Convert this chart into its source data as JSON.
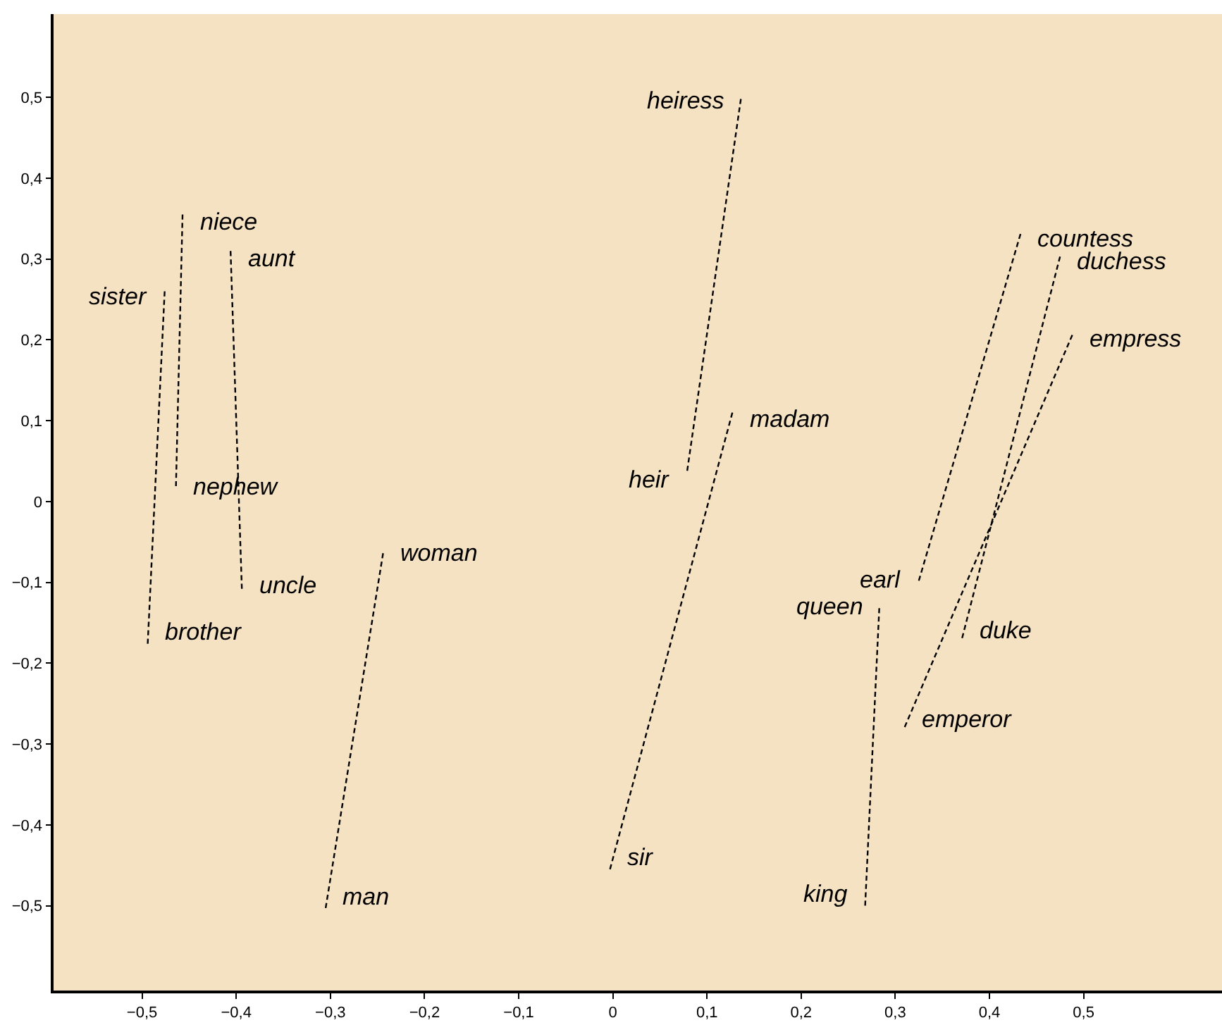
{
  "chart_data": {
    "type": "line",
    "line_style": "dashed",
    "marker": "none",
    "grid": false,
    "xlim": [
      -0.594,
      0.647
    ],
    "ylim": [
      -0.605,
      0.603
    ],
    "xticks": [
      {
        "value": -0.5,
        "label": "−0,5"
      },
      {
        "value": -0.4,
        "label": "−0,4"
      },
      {
        "value": -0.3,
        "label": "−0,3"
      },
      {
        "value": -0.2,
        "label": "−0,2"
      },
      {
        "value": -0.1,
        "label": "−0,1"
      },
      0,
      {
        "value": 0.1,
        "label": "0,1"
      },
      {
        "value": 0.2,
        "label": "0,2"
      },
      {
        "value": 0.3,
        "label": "0,3"
      },
      {
        "value": 0.4,
        "label": "0,4"
      },
      {
        "value": 0.5,
        "label": "0,5"
      }
    ],
    "yticks": [
      {
        "value": -0.5,
        "label": "−0,5"
      },
      {
        "value": -0.4,
        "label": "−0,4"
      },
      {
        "value": -0.3,
        "label": "−0,3"
      },
      {
        "value": -0.2,
        "label": "−0,2"
      },
      {
        "value": -0.1,
        "label": "−0,1"
      },
      0,
      {
        "value": 0.1,
        "label": "0,1"
      },
      {
        "value": 0.2,
        "label": "0,2"
      },
      {
        "value": 0.3,
        "label": "0,3"
      },
      {
        "value": 0.4,
        "label": "0,4"
      },
      {
        "value": 0.5,
        "label": "0,5"
      }
    ],
    "series": [
      {
        "color": "#000000",
        "x": [
          -0.476,
          -0.494
        ],
        "values": [
          0.26,
          -0.176
        ]
      },
      {
        "color": "#000000",
        "x": [
          -0.457,
          -0.464
        ],
        "values": [
          0.355,
          0.019
        ]
      },
      {
        "color": "#000000",
        "x": [
          -0.406,
          -0.394
        ],
        "values": [
          0.31,
          -0.108
        ]
      },
      {
        "color": "#000000",
        "x": [
          -0.244,
          -0.305
        ],
        "values": [
          -0.064,
          -0.503
        ]
      },
      {
        "color": "#000000",
        "x": [
          0.136,
          0.079
        ],
        "values": [
          0.498,
          0.038
        ]
      },
      {
        "color": "#000000",
        "x": [
          0.127,
          -0.003
        ],
        "values": [
          0.11,
          -0.455
        ]
      },
      {
        "color": "#000000",
        "x": [
          0.433,
          0.325
        ],
        "values": [
          0.331,
          -0.098
        ]
      },
      {
        "color": "#000000",
        "x": [
          0.475,
          0.371
        ],
        "values": [
          0.303,
          -0.169
        ]
      },
      {
        "color": "#000000",
        "x": [
          0.488,
          0.31
        ],
        "values": [
          0.206,
          -0.279
        ]
      },
      {
        "color": "#000000",
        "x": [
          0.283,
          0.268
        ],
        "values": [
          -0.132,
          -0.5
        ]
      }
    ],
    "annotations": [
      {
        "text": "sister",
        "x": -0.476,
        "y": 0.26
      },
      {
        "text": "niece",
        "x": -0.457,
        "y": 0.355
      },
      {
        "text": "aunt",
        "x": -0.406,
        "y": 0.31
      },
      {
        "text": "nephew",
        "x": -0.464,
        "y": 0.019
      },
      {
        "text": "uncle",
        "x": -0.394,
        "y": -0.108
      },
      {
        "text": "brother",
        "x": -0.494,
        "y": -0.176
      },
      {
        "text": "woman",
        "x": -0.244,
        "y": -0.064
      },
      {
        "text": "man",
        "x": -0.305,
        "y": -0.503
      },
      {
        "text": "heiress",
        "x": 0.136,
        "y": 0.498
      },
      {
        "text": "heir",
        "x": 0.079,
        "y": 0.038
      },
      {
        "text": "madam",
        "x": 0.127,
        "y": 0.11
      },
      {
        "text": "sir",
        "x": -0.003,
        "y": -0.455
      },
      {
        "text": "countess",
        "x": 0.433,
        "y": 0.331
      },
      {
        "text": "duchess",
        "x": 0.475,
        "y": 0.303
      },
      {
        "text": "empress",
        "x": 0.488,
        "y": 0.206
      },
      {
        "text": "earl",
        "x": 0.325,
        "y": -0.098
      },
      {
        "text": "queen",
        "x": 0.283,
        "y": -0.132
      },
      {
        "text": "duke",
        "x": 0.371,
        "y": -0.169
      },
      {
        "text": "emperor",
        "x": 0.31,
        "y": -0.279
      },
      {
        "text": "king",
        "x": 0.268,
        "y": -0.5
      }
    ]
  }
}
